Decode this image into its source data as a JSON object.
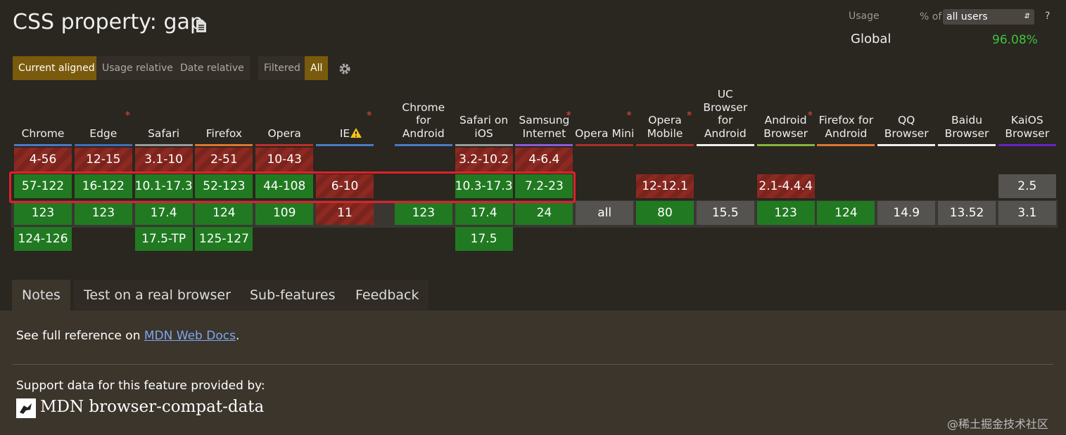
{
  "header": {
    "title": "CSS property: gap"
  },
  "usage": {
    "label": "Usage",
    "percent_of": "% of",
    "selector": "all users",
    "help": "?",
    "region": "Global",
    "value": "96.08%"
  },
  "view_controls": {
    "buttons": [
      {
        "label": "Current aligned",
        "active": true
      },
      {
        "label": "Usage relative",
        "active": false
      },
      {
        "label": "Date relative",
        "active": false
      }
    ],
    "filters": [
      {
        "label": "Filtered",
        "active": false
      },
      {
        "label": "All",
        "active": true
      }
    ]
  },
  "browser_table": {
    "note_marker": "*",
    "browsers": [
      {
        "name": "Chrome",
        "color": "#4a7bc4",
        "note": false,
        "cells": [
          {
            "text": "4-56",
            "status": "no"
          },
          {
            "text": "57-122",
            "status": "yes"
          },
          {
            "text": "123",
            "status": "yes"
          },
          {
            "text": "124-126",
            "status": "yes"
          }
        ]
      },
      {
        "name": "Edge",
        "color": "#3f6fb8",
        "note": true,
        "cells": [
          {
            "text": "12-15",
            "status": "no"
          },
          {
            "text": "16-122",
            "status": "yes"
          },
          {
            "text": "123",
            "status": "yes"
          },
          null
        ]
      },
      {
        "name": "Safari",
        "color": "#9a9a9a",
        "note": false,
        "cells": [
          {
            "text": "3.1-10",
            "status": "no"
          },
          {
            "text": "10.1-17.3",
            "status": "yes"
          },
          {
            "text": "17.4",
            "status": "yes"
          },
          {
            "text": "17.5-TP",
            "status": "yes"
          }
        ]
      },
      {
        "name": "Firefox",
        "color": "#d9782e",
        "note": false,
        "cells": [
          {
            "text": "2-51",
            "status": "no"
          },
          {
            "text": "52-123",
            "status": "yes"
          },
          {
            "text": "124",
            "status": "yes"
          },
          {
            "text": "125-127",
            "status": "yes"
          }
        ]
      },
      {
        "name": "Opera",
        "color": "#b8312b",
        "note": false,
        "cells": [
          {
            "text": "10-43",
            "status": "no"
          },
          {
            "text": "44-108",
            "status": "yes"
          },
          {
            "text": "109",
            "status": "yes"
          },
          null
        ]
      },
      {
        "name": "IE",
        "color": "#4a7bc4",
        "note": true,
        "warning": true,
        "cells": [
          null,
          {
            "text": "6-10",
            "status": "no"
          },
          {
            "text": "11",
            "status": "no"
          },
          null
        ]
      },
      {
        "name": "Chrome for Android",
        "color": "#4a7bc4",
        "note": false,
        "cells": [
          null,
          null,
          {
            "text": "123",
            "status": "yes"
          },
          null
        ]
      },
      {
        "name": "Safari on iOS",
        "color": "#9a9a9a",
        "note": false,
        "cells": [
          {
            "text": "3.2-10.2",
            "status": "no"
          },
          {
            "text": "10.3-17.3",
            "status": "yes"
          },
          {
            "text": "17.4",
            "status": "yes"
          },
          {
            "text": "17.5",
            "status": "yes"
          }
        ]
      },
      {
        "name": "Samsung Internet",
        "color": "#8a5cd8",
        "note": true,
        "cells": [
          {
            "text": "4-6.4",
            "status": "no"
          },
          {
            "text": "7.2-23",
            "status": "yes"
          },
          {
            "text": "24",
            "status": "yes"
          },
          null
        ]
      },
      {
        "name": "Opera Mini",
        "color": "#a8302a",
        "note": true,
        "cells": [
          null,
          null,
          {
            "text": "all",
            "status": "unknown"
          },
          null
        ]
      },
      {
        "name": "Opera Mobile",
        "color": "#a8302a",
        "note": true,
        "cells": [
          null,
          {
            "text": "12-12.1",
            "status": "no"
          },
          {
            "text": "80",
            "status": "yes"
          },
          null
        ]
      },
      {
        "name": "UC Browser for Android",
        "color": "#eeeeee",
        "note": false,
        "cells": [
          null,
          null,
          {
            "text": "15.5",
            "status": "unknown"
          },
          null
        ]
      },
      {
        "name": "Android Browser",
        "color": "#86b43c",
        "note": true,
        "cells": [
          null,
          {
            "text": "2.1-4.4.4",
            "status": "no"
          },
          {
            "text": "123",
            "status": "yes"
          },
          null
        ]
      },
      {
        "name": "Firefox for Android",
        "color": "#d9782e",
        "note": false,
        "cells": [
          null,
          null,
          {
            "text": "124",
            "status": "yes"
          },
          null
        ]
      },
      {
        "name": "QQ Browser",
        "color": "#eeeeee",
        "note": false,
        "cells": [
          null,
          null,
          {
            "text": "14.9",
            "status": "unknown"
          },
          null
        ]
      },
      {
        "name": "Baidu Browser",
        "color": "#eeeeee",
        "note": false,
        "cells": [
          null,
          null,
          {
            "text": "13.52",
            "status": "unknown"
          },
          null
        ]
      },
      {
        "name": "KaiOS Browser",
        "color": "#6a22c4",
        "note": false,
        "cells": [
          null,
          {
            "text": "2.5",
            "status": "unknown"
          },
          {
            "text": "3.1",
            "status": "unknown"
          },
          null
        ]
      }
    ]
  },
  "tabs": [
    {
      "label": "Notes",
      "active": true
    },
    {
      "label": "Test on a real browser",
      "active": false
    },
    {
      "label": "Sub-features",
      "active": false
    },
    {
      "label": "Feedback",
      "active": false
    }
  ],
  "notes": {
    "reference_prefix": "See full reference on ",
    "reference_link": "MDN Web Docs",
    "reference_suffix": ".",
    "support_text": "Support data for this feature provided by:",
    "source": "MDN browser-compat-data"
  },
  "watermark": "@稀土掘金技术社区"
}
